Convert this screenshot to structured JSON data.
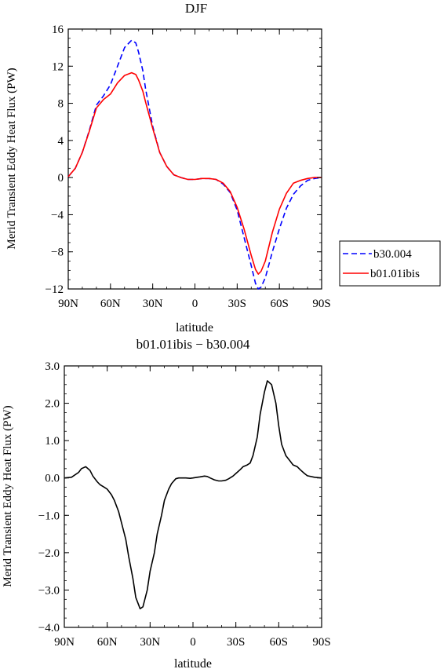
{
  "chart_data": [
    {
      "type": "line",
      "title": "DJF",
      "xlabel": "latitude",
      "ylabel": "Merid Transient Eddy Heat Flux (PW)",
      "x_tick_labels": [
        "90N",
        "60N",
        "30N",
        "0",
        "30S",
        "60S",
        "90S"
      ],
      "x_tick_values": [
        90,
        60,
        30,
        0,
        -30,
        -60,
        -90
      ],
      "y_ticks": [
        -12,
        -8,
        -4,
        0,
        4,
        8,
        12,
        16
      ],
      "y_tick_labels": [
        "-12",
        "-8",
        "-4",
        "0",
        "4",
        "8",
        "12",
        "16"
      ],
      "xlim": [
        90,
        -90
      ],
      "ylim": [
        -12,
        16
      ],
      "legend_position": "right",
      "grid": false,
      "x": [
        90,
        85,
        80,
        75,
        70,
        65,
        60,
        55,
        50,
        45,
        42,
        40,
        37,
        35,
        30,
        25,
        20,
        15,
        10,
        5,
        0,
        -5,
        -10,
        -15,
        -20,
        -25,
        -30,
        -35,
        -40,
        -43,
        -45,
        -47,
        -50,
        -55,
        -60,
        -65,
        -70,
        -75,
        -80,
        -85,
        -90
      ],
      "series": [
        {
          "name": "b30.004",
          "color": "#0000ff",
          "dash": "dashed",
          "values": [
            0.1,
            1.0,
            2.7,
            5.1,
            7.8,
            8.8,
            10.0,
            12.0,
            14.0,
            14.8,
            14.5,
            13.5,
            11.5,
            9.5,
            5.5,
            2.7,
            1.2,
            0.3,
            0.0,
            -0.2,
            -0.2,
            -0.1,
            -0.1,
            -0.2,
            -0.7,
            -1.6,
            -3.5,
            -6.5,
            -9.5,
            -11.4,
            -12.0,
            -11.8,
            -10.8,
            -8.0,
            -5.5,
            -3.3,
            -1.8,
            -0.9,
            -0.3,
            -0.1,
            0.0
          ]
        },
        {
          "name": "b01.01ibis",
          "color": "#ff0000",
          "dash": "solid",
          "values": [
            0.1,
            1.0,
            2.7,
            5.0,
            7.5,
            8.4,
            9.0,
            10.2,
            11.0,
            11.3,
            11.1,
            10.5,
            9.3,
            8.1,
            5.3,
            2.7,
            1.2,
            0.3,
            0.0,
            -0.2,
            -0.2,
            -0.1,
            -0.1,
            -0.2,
            -0.6,
            -1.5,
            -3.2,
            -5.6,
            -8.4,
            -9.9,
            -10.4,
            -10.1,
            -9.0,
            -5.9,
            -3.4,
            -1.7,
            -0.6,
            -0.3,
            -0.1,
            0.0,
            0.0
          ]
        }
      ]
    },
    {
      "type": "line",
      "title": "b01.01ibis − b30.004",
      "xlabel": "latitude",
      "ylabel": "Merid Transient Eddy Heat Flux (PW)",
      "x_tick_labels": [
        "90N",
        "60N",
        "30N",
        "0",
        "30S",
        "60S",
        "90S"
      ],
      "x_tick_values": [
        90,
        60,
        30,
        0,
        -30,
        -60,
        -90
      ],
      "y_ticks": [
        -4,
        -3,
        -2,
        -1,
        0,
        1,
        2,
        3
      ],
      "y_tick_labels": [
        "-4.0",
        "-3.0",
        "-2.0",
        "-1.0",
        "0.0",
        "1.0",
        "2.0",
        "3.0"
      ],
      "xlim": [
        90,
        -90
      ],
      "ylim": [
        -4,
        3
      ],
      "grid": false,
      "x": [
        90,
        85,
        80,
        78,
        75,
        72,
        70,
        67,
        65,
        62,
        60,
        57,
        55,
        52,
        50,
        47,
        45,
        42,
        40,
        37,
        35,
        32,
        30,
        27,
        25,
        22,
        20,
        17,
        15,
        12,
        10,
        7,
        5,
        2,
        0,
        -3,
        -5,
        -8,
        -10,
        -12,
        -15,
        -18,
        -20,
        -23,
        -25,
        -28,
        -30,
        -33,
        -35,
        -38,
        -40,
        -42,
        -45,
        -47,
        -50,
        -52,
        -55,
        -58,
        -60,
        -62,
        -65,
        -68,
        -70,
        -73,
        -75,
        -78,
        -80,
        -85,
        -90
      ],
      "series": [
        {
          "color": "#000000",
          "dash": "solid",
          "values": [
            0.0,
            0.02,
            0.15,
            0.25,
            0.3,
            0.2,
            0.05,
            -0.1,
            -0.18,
            -0.25,
            -0.3,
            -0.45,
            -0.6,
            -0.9,
            -1.2,
            -1.65,
            -2.1,
            -2.7,
            -3.2,
            -3.5,
            -3.45,
            -3.0,
            -2.5,
            -2.0,
            -1.5,
            -1.0,
            -0.6,
            -0.3,
            -0.15,
            -0.02,
            0.0,
            0.0,
            0.0,
            -0.01,
            0.0,
            0.02,
            0.03,
            0.05,
            0.04,
            0.0,
            -0.05,
            -0.08,
            -0.08,
            -0.06,
            -0.02,
            0.05,
            0.12,
            0.22,
            0.3,
            0.35,
            0.4,
            0.6,
            1.1,
            1.7,
            2.3,
            2.6,
            2.5,
            2.0,
            1.4,
            0.9,
            0.6,
            0.45,
            0.35,
            0.3,
            0.22,
            0.12,
            0.06,
            0.02,
            0.0
          ]
        }
      ]
    }
  ]
}
